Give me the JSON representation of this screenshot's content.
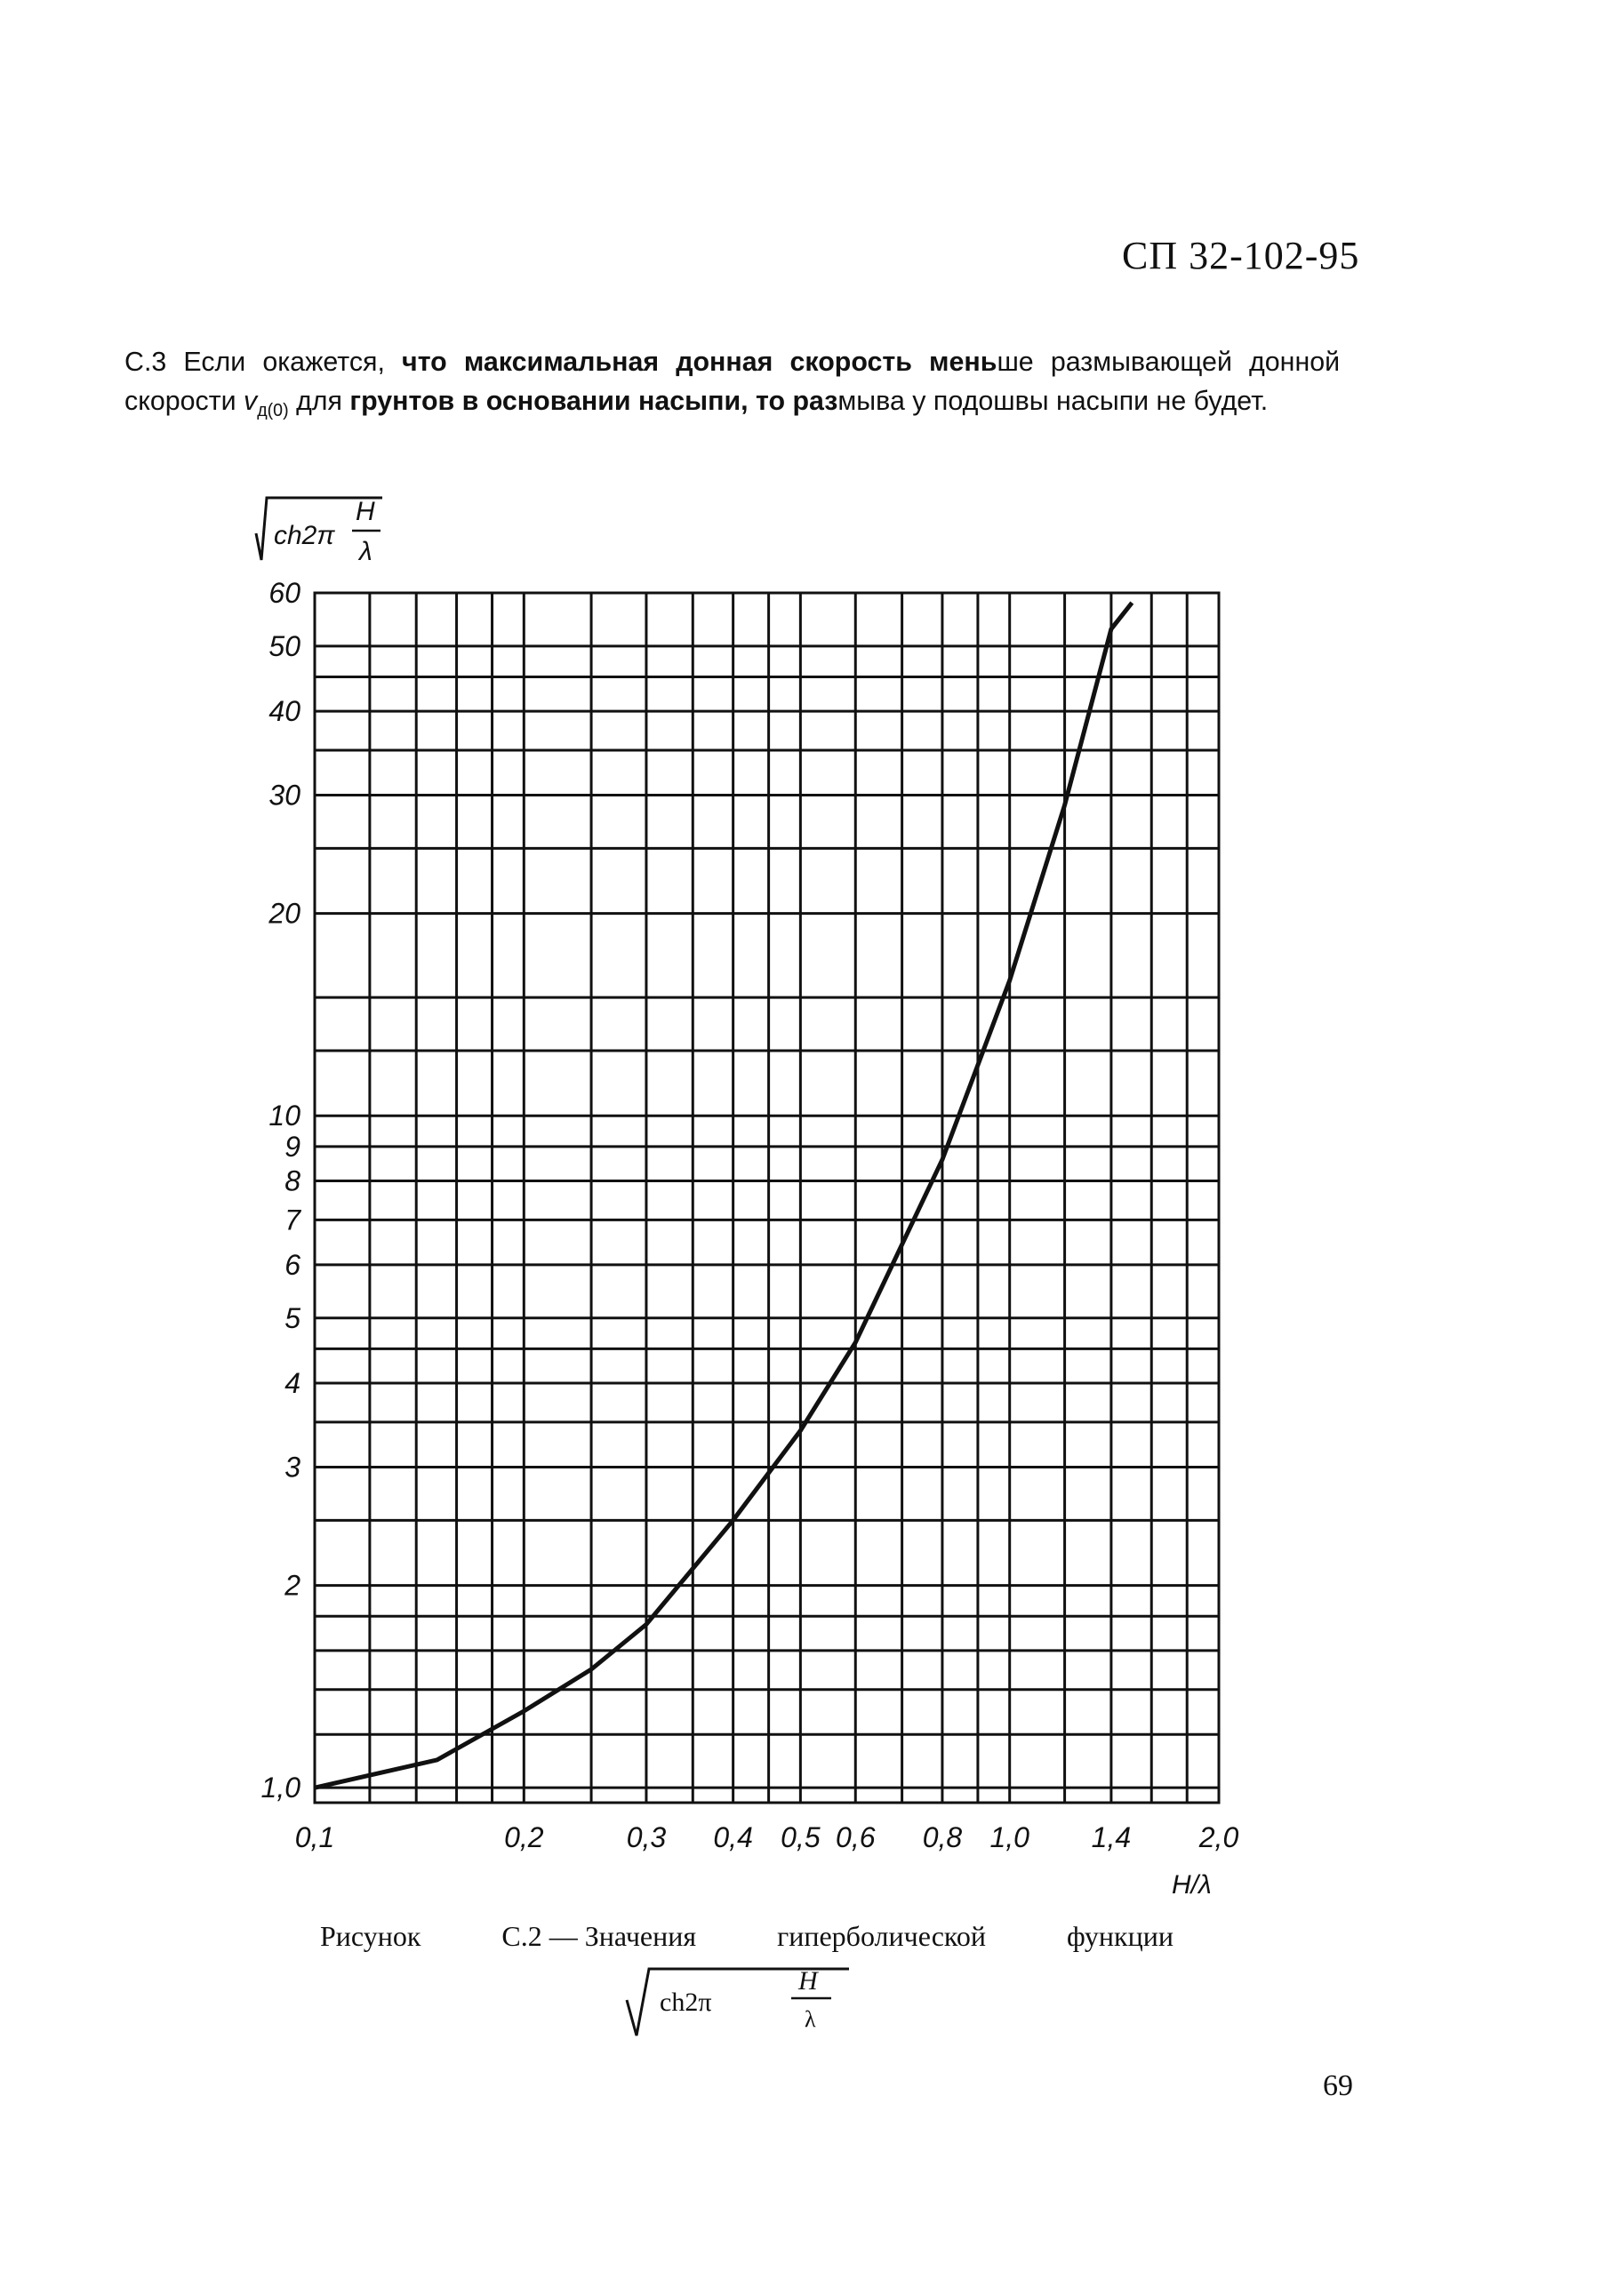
{
  "header": {
    "doc_code": "СП 32-102-95"
  },
  "paragraph": {
    "p1": "С.3 Если окажется, ",
    "p1_bold": "что максимальная донная скорость мень",
    "p1b": "ше размывающей донной скорости ",
    "v_symbol": "v",
    "v_sub": "д(0)",
    "p2": " для ",
    "p2_bold": "грунтов в основании насыпи, то раз",
    "p3": "мыва у подошвы насыпи не будет."
  },
  "caption": {
    "words": [
      "Рисунок",
      "С.2 — Значения",
      "гиперболической",
      "функции"
    ],
    "formula": "√ ch2π H/λ"
  },
  "page_number": "69",
  "chart_data": {
    "type": "line",
    "title": "Рисунок С.2 — Значения гиперболической функции √(ch2π H/λ)",
    "xlabel": "H/λ",
    "ylabel": "√(ch2π H/λ)",
    "xscale": "log",
    "yscale": "log",
    "xlim": [
      0.1,
      2.0
    ],
    "ylim": [
      0.95,
      60
    ],
    "grid": true,
    "x_ticks": [
      "0,1",
      "0,2",
      "0,3",
      "0,4",
      "0,5",
      "0,6",
      "0,8",
      "1,0",
      "1,4",
      "2,0"
    ],
    "y_ticks": [
      "1,0",
      "2",
      "3",
      "4",
      "5",
      "6",
      "7",
      "8",
      "9",
      "10",
      "20",
      "30",
      "40",
      "50",
      "60"
    ],
    "series": [
      {
        "name": "√(ch2π H/λ)",
        "x": [
          0.1,
          0.15,
          0.2,
          0.25,
          0.3,
          0.4,
          0.5,
          0.6,
          0.8,
          1.0,
          1.2,
          1.4,
          1.5
        ],
        "y": [
          1.0,
          1.1,
          1.3,
          1.5,
          1.75,
          2.5,
          3.4,
          4.6,
          8.6,
          15.9,
          29,
          53,
          58
        ]
      }
    ]
  }
}
